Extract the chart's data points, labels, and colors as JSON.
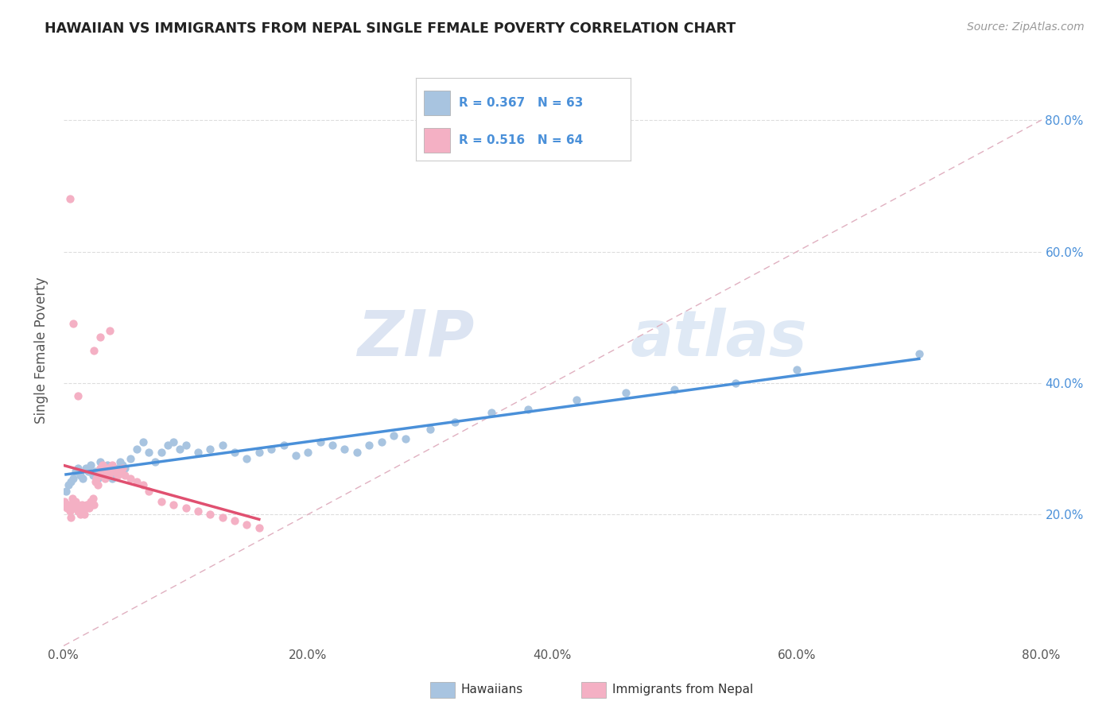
{
  "title": "HAWAIIAN VS IMMIGRANTS FROM NEPAL SINGLE FEMALE POVERTY CORRELATION CHART",
  "source": "Source: ZipAtlas.com",
  "ylabel": "Single Female Poverty",
  "xlim": [
    0.0,
    0.8
  ],
  "ylim": [
    0.0,
    0.9
  ],
  "xtick_labels": [
    "0.0%",
    "20.0%",
    "40.0%",
    "60.0%",
    "80.0%"
  ],
  "xtick_vals": [
    0.0,
    0.2,
    0.4,
    0.6,
    0.8
  ],
  "ytick_vals": [
    0.2,
    0.4,
    0.6,
    0.8
  ],
  "right_ytick_labels": [
    "20.0%",
    "40.0%",
    "60.0%",
    "80.0%"
  ],
  "right_ytick_vals": [
    0.2,
    0.4,
    0.6,
    0.8
  ],
  "hawaiians_color": "#a8c4e0",
  "nepal_color": "#f4b0c4",
  "hawaiians_line_color": "#4a90d9",
  "nepal_line_color": "#e05070",
  "diagonal_color": "#e0b0c0",
  "legend_R1": "R = 0.367",
  "legend_N1": "N = 63",
  "legend_R2": "R = 0.516",
  "legend_N2": "N = 64",
  "legend_label1": "Hawaiians",
  "legend_label2": "Immigrants from Nepal",
  "watermark_zip": "ZIP",
  "watermark_atlas": "atlas",
  "hawaiians_x": [
    0.002,
    0.004,
    0.006,
    0.008,
    0.01,
    0.012,
    0.014,
    0.016,
    0.018,
    0.02,
    0.022,
    0.024,
    0.026,
    0.028,
    0.03,
    0.032,
    0.034,
    0.036,
    0.038,
    0.04,
    0.042,
    0.044,
    0.046,
    0.048,
    0.05,
    0.055,
    0.06,
    0.065,
    0.07,
    0.075,
    0.08,
    0.085,
    0.09,
    0.095,
    0.1,
    0.11,
    0.12,
    0.13,
    0.14,
    0.15,
    0.16,
    0.17,
    0.18,
    0.19,
    0.2,
    0.21,
    0.22,
    0.23,
    0.24,
    0.25,
    0.26,
    0.27,
    0.28,
    0.3,
    0.32,
    0.35,
    0.38,
    0.42,
    0.46,
    0.5,
    0.55,
    0.6,
    0.7
  ],
  "hawaiians_y": [
    0.235,
    0.245,
    0.25,
    0.255,
    0.265,
    0.27,
    0.26,
    0.255,
    0.27,
    0.265,
    0.275,
    0.26,
    0.265,
    0.255,
    0.28,
    0.27,
    0.265,
    0.275,
    0.26,
    0.255,
    0.265,
    0.27,
    0.28,
    0.275,
    0.27,
    0.285,
    0.3,
    0.31,
    0.295,
    0.28,
    0.295,
    0.305,
    0.31,
    0.3,
    0.305,
    0.295,
    0.3,
    0.305,
    0.295,
    0.285,
    0.295,
    0.3,
    0.305,
    0.29,
    0.295,
    0.31,
    0.305,
    0.3,
    0.295,
    0.305,
    0.31,
    0.32,
    0.315,
    0.33,
    0.34,
    0.355,
    0.36,
    0.375,
    0.385,
    0.39,
    0.4,
    0.42,
    0.445
  ],
  "nepal_x": [
    0.001,
    0.002,
    0.003,
    0.004,
    0.005,
    0.006,
    0.007,
    0.008,
    0.009,
    0.01,
    0.011,
    0.012,
    0.013,
    0.014,
    0.015,
    0.016,
    0.017,
    0.018,
    0.019,
    0.02,
    0.021,
    0.022,
    0.023,
    0.024,
    0.025,
    0.026,
    0.027,
    0.028,
    0.029,
    0.03,
    0.031,
    0.032,
    0.033,
    0.034,
    0.035,
    0.036,
    0.037,
    0.038,
    0.039,
    0.04,
    0.042,
    0.044,
    0.046,
    0.048,
    0.05,
    0.055,
    0.06,
    0.065,
    0.07,
    0.08,
    0.09,
    0.1,
    0.11,
    0.12,
    0.13,
    0.14,
    0.15,
    0.16,
    0.025,
    0.03,
    0.005,
    0.008,
    0.012,
    0.038
  ],
  "nepal_y": [
    0.22,
    0.215,
    0.21,
    0.215,
    0.205,
    0.195,
    0.225,
    0.215,
    0.21,
    0.22,
    0.215,
    0.205,
    0.21,
    0.2,
    0.215,
    0.205,
    0.2,
    0.21,
    0.215,
    0.215,
    0.21,
    0.22,
    0.215,
    0.225,
    0.215,
    0.25,
    0.255,
    0.245,
    0.26,
    0.27,
    0.265,
    0.275,
    0.26,
    0.255,
    0.265,
    0.27,
    0.26,
    0.265,
    0.27,
    0.275,
    0.265,
    0.26,
    0.265,
    0.27,
    0.26,
    0.255,
    0.25,
    0.245,
    0.235,
    0.22,
    0.215,
    0.21,
    0.205,
    0.2,
    0.195,
    0.19,
    0.185,
    0.18,
    0.45,
    0.47,
    0.68,
    0.49,
    0.38,
    0.48
  ]
}
